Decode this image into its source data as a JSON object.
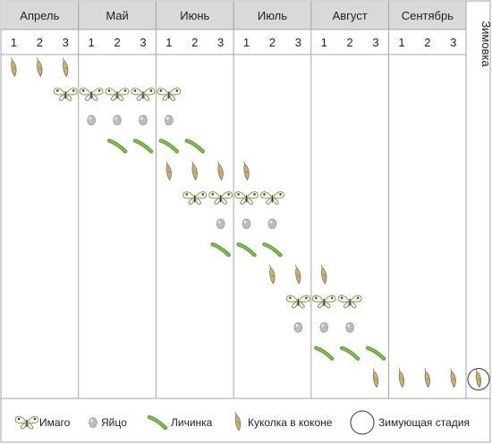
{
  "chart_data": {
    "type": "table",
    "months": [
      "Апрель",
      "Май",
      "Июнь",
      "Июль",
      "Август",
      "Сентябрь"
    ],
    "decades": [
      "1",
      "2",
      "3"
    ],
    "overwinter_label": "Зимовка",
    "stage_names": {
      "imago": "Имаго",
      "egg": "Яйцо",
      "larva": "Личинка",
      "pupa": "Куколка в коконе",
      "overwintering": "Зимующая стадия"
    },
    "rows": [
      {
        "stage": "pupa",
        "cells": [
          [
            0,
            0
          ],
          [
            0,
            1
          ],
          [
            0,
            2
          ]
        ]
      },
      {
        "stage": "imago",
        "cells": [
          [
            0,
            2
          ],
          [
            1,
            0
          ],
          [
            1,
            1
          ],
          [
            1,
            2
          ],
          [
            2,
            0
          ]
        ]
      },
      {
        "stage": "egg",
        "cells": [
          [
            1,
            0
          ],
          [
            1,
            1
          ],
          [
            1,
            2
          ],
          [
            2,
            0
          ]
        ]
      },
      {
        "stage": "larva",
        "cells": [
          [
            1,
            1
          ],
          [
            1,
            2
          ],
          [
            2,
            0
          ],
          [
            2,
            1
          ]
        ]
      },
      {
        "stage": "pupa",
        "cells": [
          [
            2,
            0
          ],
          [
            2,
            1
          ],
          [
            2,
            2
          ],
          [
            3,
            0
          ]
        ]
      },
      {
        "stage": "imago",
        "cells": [
          [
            2,
            1
          ],
          [
            2,
            2
          ],
          [
            3,
            0
          ],
          [
            3,
            1
          ]
        ]
      },
      {
        "stage": "egg",
        "cells": [
          [
            2,
            2
          ],
          [
            3,
            0
          ],
          [
            3,
            1
          ]
        ]
      },
      {
        "stage": "larva",
        "cells": [
          [
            2,
            2
          ],
          [
            3,
            0
          ],
          [
            3,
            1
          ]
        ]
      },
      {
        "stage": "pupa",
        "cells": [
          [
            3,
            1
          ],
          [
            3,
            2
          ],
          [
            4,
            0
          ]
        ]
      },
      {
        "stage": "imago",
        "cells": [
          [
            3,
            2
          ],
          [
            4,
            0
          ],
          [
            4,
            1
          ]
        ]
      },
      {
        "stage": "egg",
        "cells": [
          [
            3,
            2
          ],
          [
            4,
            0
          ],
          [
            4,
            1
          ]
        ]
      },
      {
        "stage": "larva",
        "cells": [
          [
            4,
            0
          ],
          [
            4,
            1
          ],
          [
            4,
            2
          ]
        ]
      },
      {
        "stage": "pupa",
        "cells": [
          [
            4,
            2
          ],
          [
            5,
            0
          ],
          [
            5,
            1
          ],
          [
            5,
            2
          ],
          [
            "winter"
          ]
        ]
      }
    ],
    "overwintering_stage": "pupa",
    "colors": {
      "header_bg": "#d9d9d9",
      "grid": "#a6a6a6",
      "wing": "#f4f4da",
      "wing_edge": "#7a7a5a",
      "egg": "#bdbdbd",
      "larva": "#7cbf4a",
      "pupa": "#c8b27a"
    }
  }
}
